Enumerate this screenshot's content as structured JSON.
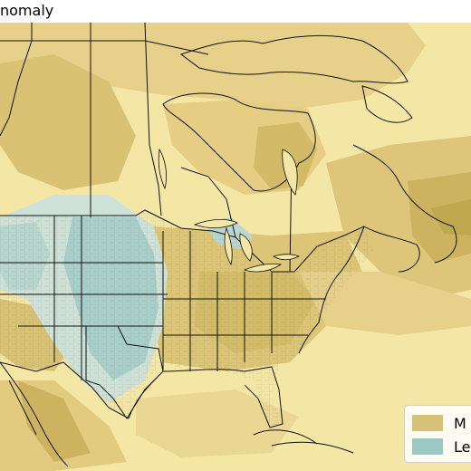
{
  "title": "nomaly",
  "legend": {
    "items": [
      {
        "label": "M",
        "color": "#d6c17a"
      },
      {
        "label": "Le",
        "color": "#9cc8c4"
      }
    ]
  },
  "colors": {
    "background": "#f4e7a6",
    "anomaly_light": "#efdc95",
    "anomaly_mid": "#e2cb7e",
    "anomaly_strong": "#cdb35f",
    "anomaly_deep": "#bfa84e",
    "less_light": "#cfe2d9",
    "less": "#a9cfca",
    "lines": "#111111",
    "county_lines": "#8c8468"
  }
}
